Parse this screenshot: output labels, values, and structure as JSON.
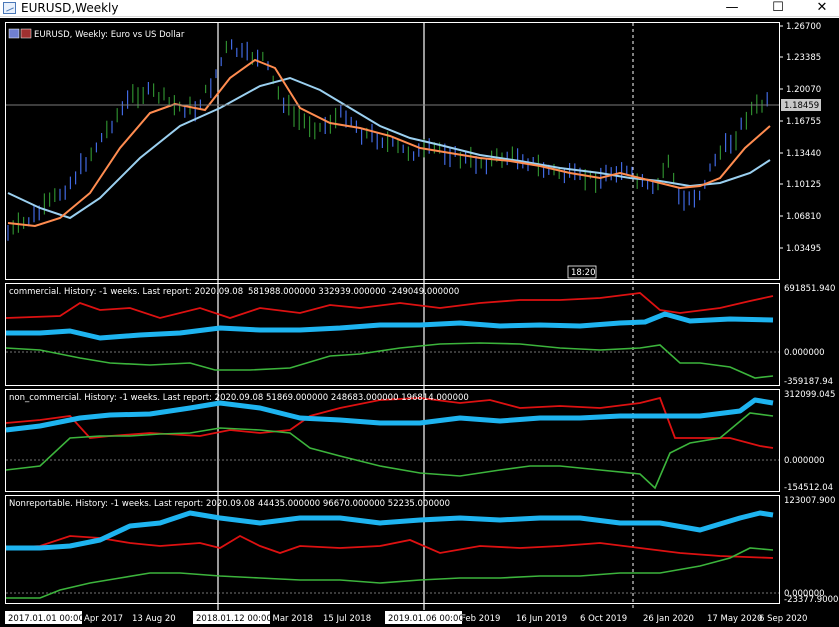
{
  "window": {
    "title": "EURUSD,Weekly",
    "minimize_glyph": "—",
    "maximize_glyph": "☐",
    "close_glyph": "✕"
  },
  "main_pane": {
    "label": "EURUSD, Weekly:  Euro vs US Dollar",
    "price_ticks": [
      "1.26700",
      "1.23385",
      "1.20070",
      "1.16755",
      "1.13440",
      "1.10125",
      "1.06810",
      "1.03495"
    ],
    "current_price": "1.18459",
    "time_marker": "18:20"
  },
  "indicators": [
    {
      "label": "commercial. History: -1 weeks. Last report: 2020.09.08",
      "values": "581988.000000 332939.000000 -249049.000000",
      "ticks": [
        "691851.940",
        "0.000000",
        "-359187.94"
      ]
    },
    {
      "label": "non_commercial. History: -1 weeks. Last report: 2020.09.08",
      "values": "51869.000000 248683.000000 196814.000000",
      "ticks": [
        "312099.045",
        "0.000000",
        "-154512.04"
      ]
    },
    {
      "label": "Nonreportable. History: -1 weeks. Last report: 2020.09.08",
      "values": "44435.000000 96670.000000 52235.000000",
      "ticks": [
        "123007.900",
        "0.000000",
        "-23377.9000"
      ]
    }
  ],
  "time_axis": {
    "labels": [
      "Apr 2017",
      "13 Aug 20",
      "25 Mar 2018",
      "15 Jul 2018",
      "Feb 2019",
      "16 Jun 2019",
      "6 Oct 2019",
      "26 Jan 2020",
      "17 May 2020",
      "6 Sep 2020"
    ],
    "highlighted": [
      "2017.01.01 00:00",
      "2018.01.12 00:00",
      "2019.01.06 00:00"
    ]
  },
  "colors": {
    "background": "#000000",
    "bull_bar": "#2e8b2e",
    "bear_bar": "#4169e1",
    "fast_ma": "#ff8c50",
    "slow_ma": "#9bd0f0",
    "red_line": "#dd1111",
    "green_line": "#3cb43c",
    "blue_thick": "#1eb4f0"
  }
}
